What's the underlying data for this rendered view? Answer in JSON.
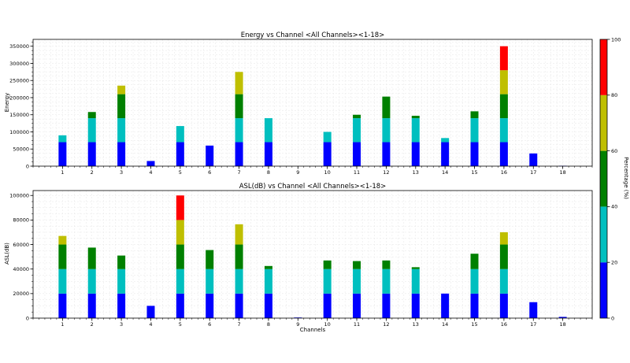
{
  "chart_data": [
    {
      "type": "bar",
      "stacked": true,
      "title": "Energy vs Channel <All Channels><1-18>",
      "xlabel": "",
      "ylabel": "Energy",
      "categories": [
        "1",
        "2",
        "3",
        "4",
        "5",
        "6",
        "7",
        "8",
        "9",
        "10",
        "11",
        "12",
        "13",
        "14",
        "15",
        "16",
        "17",
        "18"
      ],
      "ylim": [
        0,
        370000
      ],
      "yticks": [
        0,
        50000,
        100000,
        150000,
        200000,
        250000,
        300000,
        350000
      ],
      "ytick_labels": [
        "0",
        "50000",
        "100000",
        "150000",
        "200000",
        "250000",
        "300000",
        "350000"
      ],
      "grid": true,
      "series": [
        {
          "color": "#0000ff",
          "values": [
            70000,
            70000,
            70000,
            15000,
            70000,
            60000,
            70000,
            70000,
            0,
            70000,
            70000,
            70000,
            70000,
            70000,
            70000,
            70000,
            37000,
            1000
          ]
        },
        {
          "color": "#00bfbf",
          "values": [
            20000,
            70000,
            70000,
            0,
            47000,
            0,
            70000,
            70000,
            0,
            30000,
            70000,
            70000,
            70000,
            12000,
            70000,
            70000,
            0,
            0
          ]
        },
        {
          "color": "#008000",
          "values": [
            0,
            18000,
            70000,
            0,
            0,
            0,
            70000,
            0,
            0,
            0,
            10000,
            63000,
            7000,
            0,
            20000,
            70000,
            0,
            0
          ]
        },
        {
          "color": "#bfbf00",
          "values": [
            0,
            0,
            25000,
            0,
            0,
            0,
            65000,
            0,
            0,
            0,
            0,
            0,
            0,
            0,
            0,
            70000,
            0,
            0
          ]
        },
        {
          "color": "#ff0000",
          "values": [
            0,
            0,
            0,
            0,
            0,
            0,
            0,
            0,
            0,
            0,
            0,
            0,
            0,
            0,
            0,
            70000,
            0,
            0
          ]
        }
      ]
    },
    {
      "type": "bar",
      "stacked": true,
      "title": "ASL(dB) vs Channel <All Channels><1-18>",
      "xlabel": "Channels",
      "ylabel": "ASL(dB)",
      "categories": [
        "1",
        "2",
        "3",
        "4",
        "5",
        "6",
        "7",
        "8",
        "9",
        "10",
        "11",
        "12",
        "13",
        "14",
        "15",
        "16",
        "17",
        "18"
      ],
      "ylim": [
        0,
        104000
      ],
      "yticks": [
        0,
        20000,
        40000,
        60000,
        80000,
        100000
      ],
      "ytick_labels": [
        "0",
        "20000",
        "40000",
        "60000",
        "80000",
        "100000"
      ],
      "grid": true,
      "series": [
        {
          "color": "#0000ff",
          "values": [
            20000,
            20000,
            20000,
            10000,
            20000,
            20000,
            20000,
            20000,
            500,
            20000,
            20000,
            20000,
            20000,
            20000,
            20000,
            20000,
            13000,
            1000
          ]
        },
        {
          "color": "#00bfbf",
          "values": [
            20000,
            20000,
            20000,
            0,
            20000,
            20000,
            20000,
            20000,
            0,
            20000,
            20000,
            20000,
            20000,
            0,
            20000,
            20000,
            0,
            0
          ]
        },
        {
          "color": "#008000",
          "values": [
            20000,
            17500,
            11000,
            0,
            20000,
            15500,
            20000,
            2500,
            0,
            7000,
            6500,
            7000,
            1500,
            0,
            12500,
            20000,
            0,
            0
          ]
        },
        {
          "color": "#bfbf00",
          "values": [
            7000,
            0,
            0,
            0,
            20000,
            0,
            16500,
            0,
            0,
            0,
            0,
            0,
            0,
            0,
            0,
            10000,
            0,
            0
          ]
        },
        {
          "color": "#ff0000",
          "values": [
            0,
            0,
            0,
            0,
            20000,
            0,
            0,
            0,
            0,
            0,
            0,
            0,
            0,
            0,
            0,
            0,
            0,
            0
          ]
        }
      ]
    }
  ],
  "colorbar": {
    "label": "Percentage (%)",
    "ticks": [
      0,
      20,
      40,
      60,
      80,
      100
    ],
    "segments": [
      {
        "from": 0,
        "to": 20,
        "color": "#0000ff"
      },
      {
        "from": 20,
        "to": 40,
        "color": "#00bfbf"
      },
      {
        "from": 40,
        "to": 60,
        "color": "#008000"
      },
      {
        "from": 60,
        "to": 80,
        "color": "#bfbf00"
      },
      {
        "from": 80,
        "to": 100,
        "color": "#ff0000"
      }
    ]
  }
}
